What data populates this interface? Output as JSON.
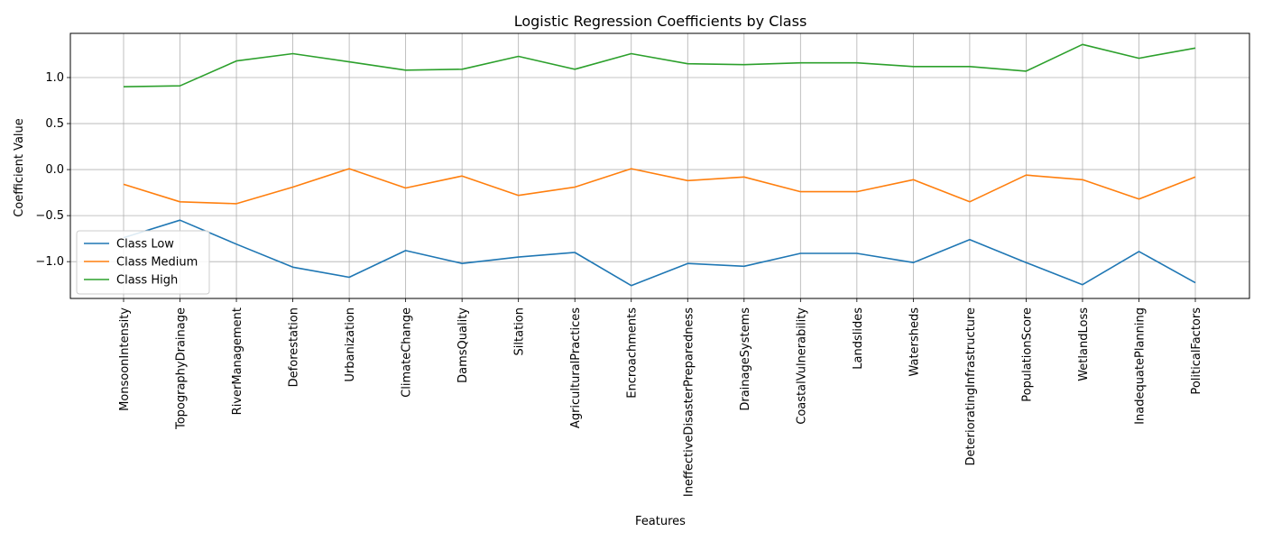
{
  "chart_data": {
    "type": "line",
    "title": "Logistic Regression Coefficients by Class",
    "xlabel": "Features",
    "ylabel": "Coefficient Value",
    "categories": [
      "MonsoonIntensity",
      "TopographyDrainage",
      "RiverManagement",
      "Deforestation",
      "Urbanization",
      "ClimateChange",
      "DamsQuality",
      "Siltation",
      "AgriculturalPractices",
      "Encroachments",
      "IneffectiveDisasterPreparedness",
      "DrainageSystems",
      "CoastalVulnerability",
      "Landslides",
      "Watersheds",
      "DeterioratingInfrastructure",
      "PopulationScore",
      "WetlandLoss",
      "InadequatePlanning",
      "PoliticalFactors"
    ],
    "ylim": [
      -1.4,
      1.48
    ],
    "yticks": [
      "−1.0",
      "−0.5",
      "0.0",
      "0.5",
      "1.0"
    ],
    "ytick_values": [
      -1.0,
      -0.5,
      0.0,
      0.5,
      1.0
    ],
    "grid": true,
    "legend_position": "lower-left",
    "series": [
      {
        "name": "Class Low",
        "color": "#1f77b4",
        "values": [
          -0.74,
          -0.55,
          -0.81,
          -1.06,
          -1.17,
          -0.88,
          -1.02,
          -0.95,
          -0.9,
          -1.26,
          -1.02,
          -1.05,
          -0.91,
          -0.91,
          -1.01,
          -0.76,
          -1.01,
          -1.25,
          -0.89,
          -1.23
        ]
      },
      {
        "name": "Class Medium",
        "color": "#ff7f0e",
        "values": [
          -0.16,
          -0.35,
          -0.37,
          -0.19,
          0.01,
          -0.2,
          -0.07,
          -0.28,
          -0.19,
          0.01,
          -0.12,
          -0.08,
          -0.24,
          -0.24,
          -0.11,
          -0.35,
          -0.06,
          -0.11,
          -0.32,
          -0.08
        ]
      },
      {
        "name": "Class High",
        "color": "#2ca02c",
        "values": [
          0.9,
          0.91,
          1.18,
          1.26,
          1.17,
          1.08,
          1.09,
          1.23,
          1.09,
          1.26,
          1.15,
          1.14,
          1.16,
          1.16,
          1.12,
          1.12,
          1.07,
          1.36,
          1.21,
          1.32
        ]
      }
    ]
  }
}
